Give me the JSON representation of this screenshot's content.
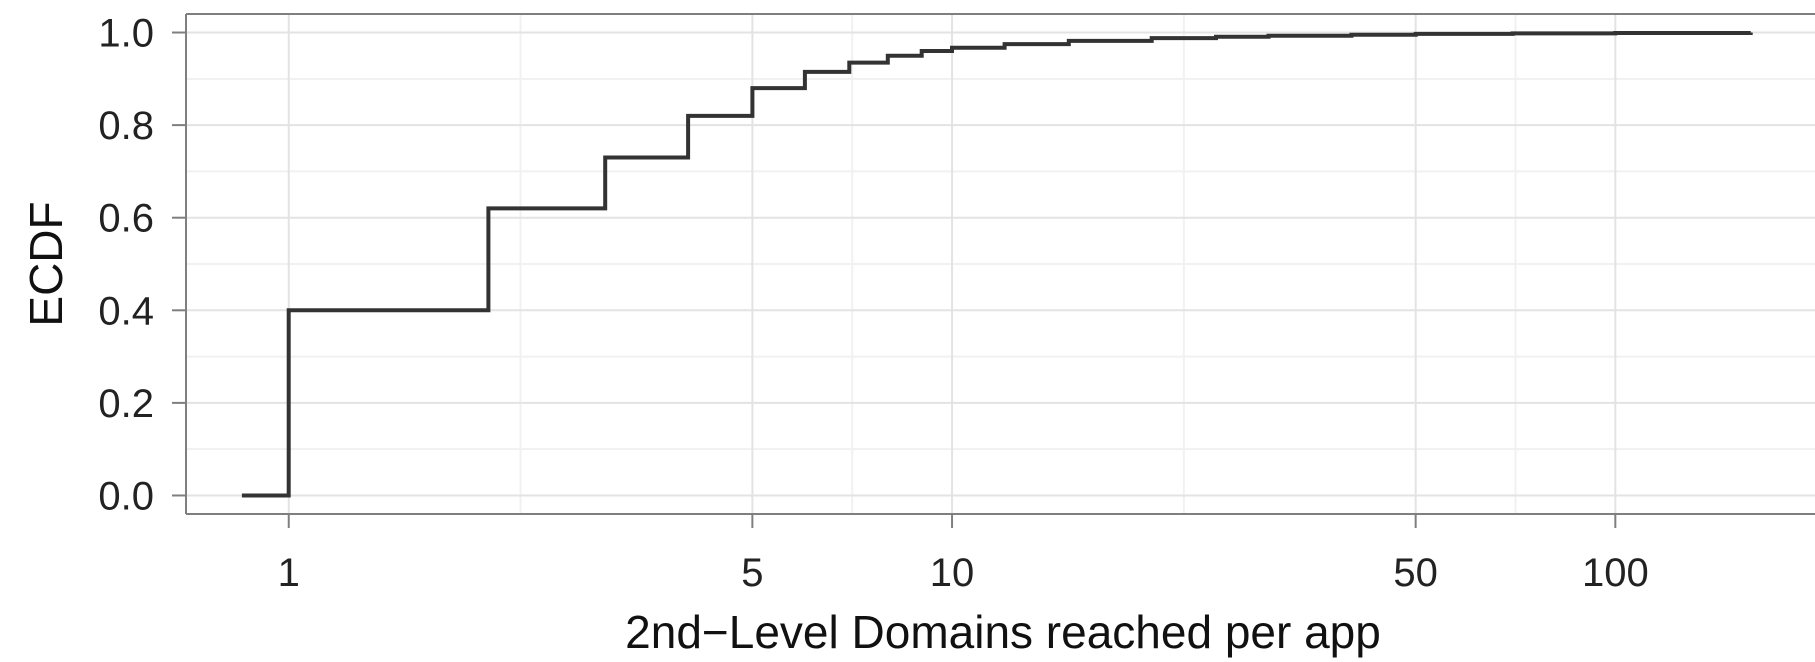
{
  "chart_data": {
    "type": "line",
    "step": true,
    "title": "",
    "xlabel": "2nd−Level Domains reached per app",
    "ylabel": "ECDF",
    "x_scale": "log",
    "xlim": [
      0.7,
      200
    ],
    "ylim": [
      -0.04,
      1.04
    ],
    "x_ticks": [
      1,
      5,
      10,
      50,
      100
    ],
    "x_tick_labels": [
      "1",
      "5",
      "10",
      "50",
      "100"
    ],
    "y_ticks": [
      0.0,
      0.2,
      0.4,
      0.6,
      0.8,
      1.0
    ],
    "y_tick_labels": [
      "0.0",
      "0.2",
      "0.4",
      "0.6",
      "0.8",
      "1.0"
    ],
    "grid": true,
    "legend": "none",
    "colors": {
      "line": "#333333",
      "panel_border": "#7f7f7f",
      "grid_major": "#e3e3e3",
      "grid_minor": "#f1f1f1"
    },
    "series": [
      {
        "x": [
          0.85,
          1,
          2,
          3,
          4,
          5,
          6,
          7,
          8,
          9,
          10,
          12,
          15,
          20,
          25,
          30,
          40,
          50,
          70,
          100,
          160
        ],
        "y": [
          0.0,
          0.4,
          0.62,
          0.73,
          0.82,
          0.88,
          0.915,
          0.935,
          0.95,
          0.96,
          0.967,
          0.975,
          0.982,
          0.988,
          0.991,
          0.993,
          0.995,
          0.997,
          0.998,
          0.999,
          1.0
        ]
      }
    ]
  }
}
